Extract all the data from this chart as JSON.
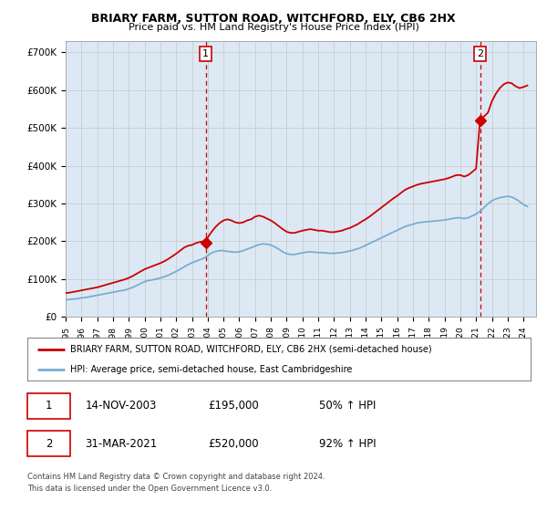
{
  "title1": "BRIARY FARM, SUTTON ROAD, WITCHFORD, ELY, CB6 2HX",
  "title2": "Price paid vs. HM Land Registry's House Price Index (HPI)",
  "ylabel_ticks": [
    "£0",
    "£100K",
    "£200K",
    "£300K",
    "£400K",
    "£500K",
    "£600K",
    "£700K"
  ],
  "ytick_vals": [
    0,
    100000,
    200000,
    300000,
    400000,
    500000,
    600000,
    700000
  ],
  "ylim": [
    0,
    730000
  ],
  "xlim_start": 1995.0,
  "xlim_end": 2024.8,
  "sale1_x": 2003.87,
  "sale1_y": 195000,
  "sale1_label": "1",
  "sale2_x": 2021.25,
  "sale2_y": 520000,
  "sale2_label": "2",
  "red_line_color": "#cc0000",
  "blue_line_color": "#7aadcf",
  "marker_color": "#cc0000",
  "vline_color": "#cc0000",
  "grid_color": "#cccccc",
  "plot_bg_color": "#dce9f5",
  "background_color": "#ffffff",
  "legend_label_red": "BRIARY FARM, SUTTON ROAD, WITCHFORD, ELY, CB6 2HX (semi-detached house)",
  "legend_label_blue": "HPI: Average price, semi-detached house, East Cambridgeshire",
  "footnote1": "Contains HM Land Registry data © Crown copyright and database right 2024.",
  "footnote2": "This data is licensed under the Open Government Licence v3.0.",
  "table_rows": [
    [
      "1",
      "14-NOV-2003",
      "£195,000",
      "50% ↑ HPI"
    ],
    [
      "2",
      "31-MAR-2021",
      "£520,000",
      "92% ↑ HPI"
    ]
  ],
  "hpi_data_x": [
    1995.0,
    1995.25,
    1995.5,
    1995.75,
    1996.0,
    1996.25,
    1996.5,
    1996.75,
    1997.0,
    1997.25,
    1997.5,
    1997.75,
    1998.0,
    1998.25,
    1998.5,
    1998.75,
    1999.0,
    1999.25,
    1999.5,
    1999.75,
    2000.0,
    2000.25,
    2000.5,
    2000.75,
    2001.0,
    2001.25,
    2001.5,
    2001.75,
    2002.0,
    2002.25,
    2002.5,
    2002.75,
    2003.0,
    2003.25,
    2003.5,
    2003.75,
    2004.0,
    2004.25,
    2004.5,
    2004.75,
    2005.0,
    2005.25,
    2005.5,
    2005.75,
    2006.0,
    2006.25,
    2006.5,
    2006.75,
    2007.0,
    2007.25,
    2007.5,
    2007.75,
    2008.0,
    2008.25,
    2008.5,
    2008.75,
    2009.0,
    2009.25,
    2009.5,
    2009.75,
    2010.0,
    2010.25,
    2010.5,
    2010.75,
    2011.0,
    2011.25,
    2011.5,
    2011.75,
    2012.0,
    2012.25,
    2012.5,
    2012.75,
    2013.0,
    2013.25,
    2013.5,
    2013.75,
    2014.0,
    2014.25,
    2014.5,
    2014.75,
    2015.0,
    2015.25,
    2015.5,
    2015.75,
    2016.0,
    2016.25,
    2016.5,
    2016.75,
    2017.0,
    2017.25,
    2017.5,
    2017.75,
    2018.0,
    2018.25,
    2018.5,
    2018.75,
    2019.0,
    2019.25,
    2019.5,
    2019.75,
    2020.0,
    2020.25,
    2020.5,
    2020.75,
    2021.0,
    2021.25,
    2021.5,
    2021.75,
    2022.0,
    2022.25,
    2022.5,
    2022.75,
    2023.0,
    2023.25,
    2023.5,
    2023.75,
    2024.0,
    2024.25
  ],
  "hpi_data_y": [
    45000,
    46000,
    47000,
    48000,
    50000,
    51000,
    53000,
    55000,
    57000,
    59000,
    61000,
    63000,
    65000,
    67000,
    69000,
    71000,
    74000,
    78000,
    83000,
    88000,
    93000,
    96000,
    98000,
    100000,
    103000,
    106000,
    110000,
    115000,
    120000,
    126000,
    132000,
    138000,
    143000,
    147000,
    151000,
    155000,
    162000,
    169000,
    173000,
    175000,
    175000,
    173000,
    172000,
    171000,
    172000,
    175000,
    179000,
    183000,
    187000,
    191000,
    193000,
    192000,
    190000,
    185000,
    179000,
    172000,
    167000,
    165000,
    165000,
    167000,
    169000,
    171000,
    172000,
    171000,
    170000,
    170000,
    169000,
    168000,
    168000,
    169000,
    170000,
    172000,
    174000,
    177000,
    180000,
    184000,
    189000,
    194000,
    199000,
    204000,
    209000,
    214000,
    219000,
    224000,
    229000,
    234000,
    239000,
    242000,
    245000,
    248000,
    250000,
    251000,
    252000,
    253000,
    254000,
    255000,
    256000,
    258000,
    260000,
    262000,
    262000,
    260000,
    262000,
    267000,
    272000,
    279000,
    289000,
    299000,
    307000,
    312000,
    315000,
    317000,
    319000,
    317000,
    312000,
    305000,
    297000,
    292000
  ],
  "red_data_x": [
    1995.0,
    1995.25,
    1995.5,
    1995.75,
    1996.0,
    1996.25,
    1996.5,
    1996.75,
    1997.0,
    1997.25,
    1997.5,
    1997.75,
    1998.0,
    1998.25,
    1998.5,
    1998.75,
    1999.0,
    1999.25,
    1999.5,
    1999.75,
    2000.0,
    2000.25,
    2000.5,
    2000.75,
    2001.0,
    2001.25,
    2001.5,
    2001.75,
    2002.0,
    2002.25,
    2002.5,
    2002.75,
    2003.0,
    2003.25,
    2003.5,
    2003.75,
    2003.87,
    2003.87,
    2004.0,
    2004.25,
    2004.5,
    2004.75,
    2005.0,
    2005.25,
    2005.5,
    2005.75,
    2006.0,
    2006.25,
    2006.5,
    2006.75,
    2007.0,
    2007.25,
    2007.5,
    2007.75,
    2008.0,
    2008.25,
    2008.5,
    2008.75,
    2009.0,
    2009.25,
    2009.5,
    2009.75,
    2010.0,
    2010.25,
    2010.5,
    2010.75,
    2011.0,
    2011.25,
    2011.5,
    2011.75,
    2012.0,
    2012.25,
    2012.5,
    2012.75,
    2013.0,
    2013.25,
    2013.5,
    2013.75,
    2014.0,
    2014.25,
    2014.5,
    2014.75,
    2015.0,
    2015.25,
    2015.5,
    2015.75,
    2016.0,
    2016.25,
    2016.5,
    2016.75,
    2017.0,
    2017.25,
    2017.5,
    2017.75,
    2018.0,
    2018.25,
    2018.5,
    2018.75,
    2019.0,
    2019.25,
    2019.5,
    2019.75,
    2020.0,
    2020.25,
    2020.5,
    2020.75,
    2021.0,
    2021.25,
    2021.25,
    2021.5,
    2021.75,
    2022.0,
    2022.25,
    2022.5,
    2022.75,
    2023.0,
    2023.25,
    2023.5,
    2023.75,
    2024.0,
    2024.25
  ],
  "red_data_y": [
    63000,
    64000,
    66000,
    68000,
    70000,
    72000,
    74000,
    76000,
    78000,
    81000,
    84000,
    87000,
    90000,
    93000,
    96000,
    99000,
    103000,
    108000,
    114000,
    120000,
    126000,
    130000,
    134000,
    138000,
    142000,
    147000,
    153000,
    160000,
    167000,
    175000,
    183000,
    188000,
    190000,
    195000,
    198000,
    200000,
    195000,
    195000,
    210000,
    225000,
    238000,
    248000,
    255000,
    258000,
    255000,
    250000,
    248000,
    250000,
    255000,
    258000,
    265000,
    268000,
    265000,
    260000,
    255000,
    248000,
    240000,
    232000,
    225000,
    222000,
    222000,
    225000,
    228000,
    230000,
    232000,
    230000,
    228000,
    228000,
    226000,
    224000,
    224000,
    226000,
    228000,
    232000,
    235000,
    240000,
    245000,
    252000,
    258000,
    265000,
    273000,
    281000,
    289000,
    297000,
    305000,
    313000,
    320000,
    328000,
    336000,
    341000,
    345000,
    349000,
    352000,
    354000,
    356000,
    358000,
    360000,
    362000,
    364000,
    367000,
    371000,
    375000,
    375000,
    371000,
    375000,
    383000,
    392000,
    520000,
    520000,
    530000,
    540000,
    570000,
    590000,
    605000,
    615000,
    620000,
    618000,
    610000,
    605000,
    608000,
    612000
  ]
}
